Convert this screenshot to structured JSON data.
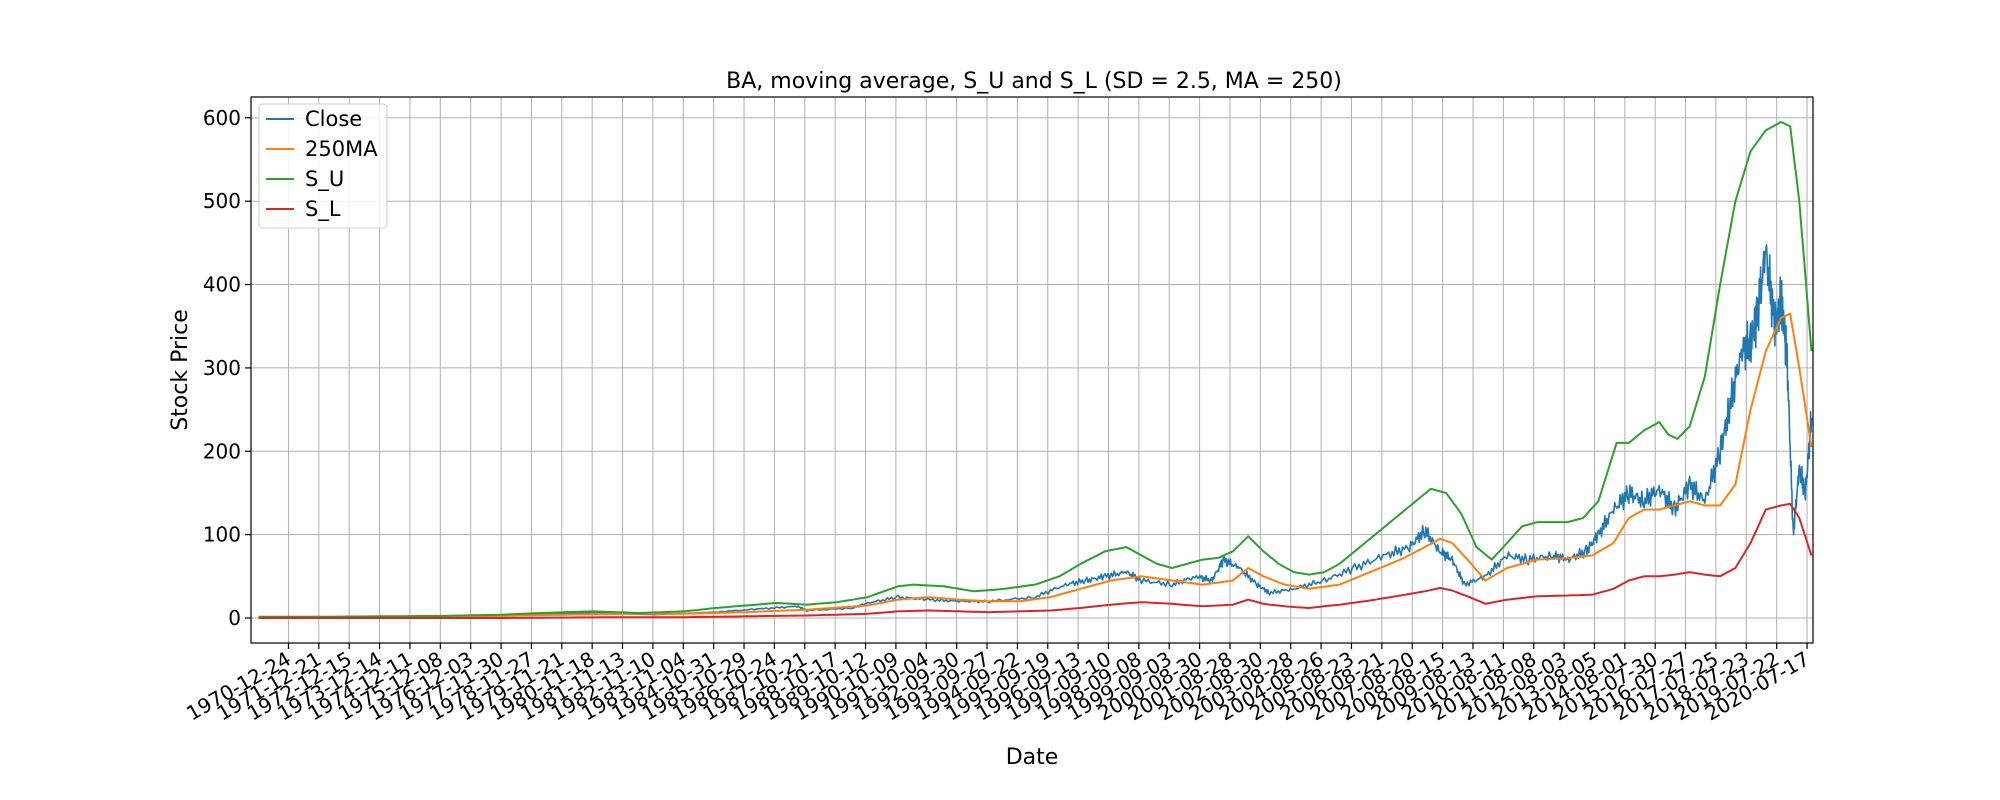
{
  "chart_data": {
    "type": "line",
    "title": "BA, moving average, S_U and S_L (SD = 2.5, MA = 250)",
    "xlabel": "Date",
    "ylabel": "Stock Price",
    "ylim": [
      -30,
      625
    ],
    "xlim": [
      1969.75,
      2021.05
    ],
    "yticks": [
      0,
      100,
      200,
      300,
      400,
      500,
      600
    ],
    "grid": true,
    "legend_position": "top-left",
    "colors": {
      "Close": "#1f77b4",
      "250MA": "#ff7f0e",
      "S_U": "#2ca02c",
      "S_L": "#d62728"
    },
    "xtick_labels": [
      "1970-12-24",
      "1971-12-21",
      "1972-12-15",
      "1973-12-14",
      "1974-12-11",
      "1975-12-08",
      "1976-12-03",
      "1977-11-30",
      "1978-11-27",
      "1979-11-21",
      "1980-11-18",
      "1981-11-13",
      "1982-11-10",
      "1983-11-04",
      "1984-10-31",
      "1985-10-29",
      "1986-10-24",
      "1987-10-21",
      "1988-10-17",
      "1989-10-12",
      "1990-10-09",
      "1991-10-04",
      "1992-09-30",
      "1993-09-27",
      "1994-09-22",
      "1995-09-19",
      "1996-09-13",
      "1997-09-10",
      "1998-09-08",
      "1999-09-03",
      "2000-08-30",
      "2001-08-28",
      "2002-08-30",
      "2003-08-28",
      "2004-08-26",
      "2005-08-23",
      "2006-08-21",
      "2007-08-20",
      "2008-08-15",
      "2009-08-13",
      "2010-08-11",
      "2011-08-08",
      "2012-08-03",
      "2013-08-05",
      "2014-08-01",
      "2015-07-30",
      "2016-07-27",
      "2017-07-25",
      "2018-07-23",
      "2019-07-22",
      "2020-07-17"
    ],
    "series": [
      {
        "name": "Close",
        "x": [
          1970.0,
          1972.0,
          1974.0,
          1976.0,
          1978.0,
          1979.5,
          1981.0,
          1983.0,
          1985.0,
          1986.5,
          1987.7,
          1988.0,
          1989.5,
          1990.0,
          1991.0,
          1992.0,
          1993.0,
          1994.0,
          1995.5,
          1996.5,
          1997.2,
          1997.8,
          1998.5,
          1999.0,
          2000.0,
          2000.8,
          2001.3,
          2001.7,
          2002.2,
          2002.8,
          2003.2,
          2004.0,
          2005.0,
          2006.0,
          2007.0,
          2007.8,
          2008.3,
          2008.8,
          2009.2,
          2009.6,
          2010.3,
          2011.0,
          2011.7,
          2012.5,
          2013.0,
          2013.6,
          2014.0,
          2014.5,
          2015.0,
          2015.5,
          2016.0,
          2016.5,
          2017.0,
          2017.5,
          2018.0,
          2018.3,
          2018.7,
          2019.0,
          2019.2,
          2019.5,
          2019.8,
          2020.0,
          2020.1,
          2020.2,
          2020.4,
          2020.6,
          2020.8,
          2021.0
        ],
        "y": [
          1,
          1.5,
          1,
          2,
          3,
          5,
          6,
          4,
          7,
          11,
          14,
          9,
          12,
          18,
          25,
          22,
          20,
          20,
          25,
          40,
          45,
          50,
          55,
          45,
          40,
          50,
          45,
          70,
          60,
          40,
          30,
          35,
          45,
          60,
          75,
          85,
          105,
          80,
          70,
          40,
          50,
          75,
          70,
          75,
          70,
          80,
          100,
          130,
          150,
          140,
          155,
          130,
          160,
          140,
          200,
          250,
          320,
          330,
          360,
          440,
          350,
          380,
          350,
          310,
          100,
          180,
          150,
          240
        ]
      },
      {
        "name": "250MA",
        "x": [
          1970.0,
          1972.0,
          1974.0,
          1976.0,
          1978.0,
          1980.0,
          1982.0,
          1984.0,
          1986.0,
          1988.0,
          1990.0,
          1991.0,
          1992.0,
          1993.0,
          1994.0,
          1995.0,
          1996.0,
          1997.0,
          1998.0,
          1999.0,
          2000.0,
          2001.0,
          2002.0,
          2002.5,
          2003.0,
          2003.7,
          2004.5,
          2005.5,
          2006.5,
          2007.5,
          2008.3,
          2008.8,
          2009.2,
          2009.7,
          2010.3,
          2011.0,
          2012.0,
          2013.0,
          2013.8,
          2014.5,
          2015.0,
          2015.5,
          2016.0,
          2016.5,
          2017.0,
          2017.5,
          2018.0,
          2018.5,
          2019.0,
          2019.5,
          2020.0,
          2020.3,
          2020.6,
          2021.0
        ],
        "y": [
          1,
          1,
          1,
          1.5,
          2.5,
          4,
          5,
          5,
          7,
          10,
          15,
          22,
          25,
          22,
          20,
          20,
          25,
          35,
          45,
          50,
          45,
          40,
          45,
          60,
          50,
          40,
          35,
          40,
          55,
          70,
          85,
          95,
          90,
          70,
          45,
          60,
          70,
          72,
          75,
          90,
          120,
          130,
          130,
          135,
          140,
          135,
          135,
          160,
          250,
          320,
          360,
          365,
          300,
          205
        ]
      },
      {
        "name": "S_U",
        "x": [
          1970.0,
          1972.0,
          1974.0,
          1976.0,
          1978.0,
          1980.0,
          1981.0,
          1982.5,
          1984.0,
          1985.0,
          1986.0,
          1987.0,
          1988.0,
          1989.0,
          1990.0,
          1991.0,
          1991.5,
          1992.5,
          1993.5,
          1994.5,
          1995.5,
          1996.3,
          1997.0,
          1997.8,
          1998.5,
          1999.0,
          1999.5,
          2000.0,
          2000.5,
          2001.0,
          2001.5,
          2002.0,
          2002.5,
          2003.0,
          2003.5,
          2004.0,
          2004.5,
          2005.0,
          2005.5,
          2006.0,
          2006.5,
          2007.0,
          2007.5,
          2008.0,
          2008.5,
          2009.0,
          2009.5,
          2010.0,
          2010.5,
          2011.0,
          2011.5,
          2012.0,
          2012.5,
          2013.0,
          2013.5,
          2014.0,
          2014.3,
          2014.6,
          2015.0,
          2015.5,
          2016.0,
          2016.3,
          2016.6,
          2017.0,
          2017.5,
          2018.0,
          2018.5,
          2019.0,
          2019.5,
          2020.0,
          2020.3,
          2020.6,
          2021.0
        ],
        "y": [
          1.5,
          1.5,
          2,
          2.5,
          4,
          7,
          8,
          6,
          8,
          12,
          15,
          18,
          16,
          19,
          25,
          38,
          40,
          38,
          32,
          35,
          40,
          50,
          65,
          80,
          85,
          75,
          65,
          60,
          65,
          70,
          72,
          80,
          98,
          80,
          65,
          55,
          52,
          55,
          65,
          80,
          95,
          110,
          125,
          140,
          155,
          150,
          125,
          85,
          70,
          90,
          110,
          115,
          115,
          115,
          120,
          140,
          175,
          210,
          210,
          225,
          235,
          220,
          215,
          230,
          290,
          400,
          500,
          560,
          585,
          595,
          590,
          500,
          320
        ]
      },
      {
        "name": "S_L",
        "x": [
          1970.0,
          1972.0,
          1974.0,
          1976.0,
          1978.0,
          1980.0,
          1982.0,
          1984.0,
          1986.0,
          1988.0,
          1990.0,
          1991.0,
          1992.0,
          1993.0,
          1994.0,
          1995.0,
          1996.0,
          1997.0,
          1998.0,
          1999.0,
          2000.0,
          2001.0,
          2002.0,
          2002.5,
          2003.0,
          2003.7,
          2004.5,
          2005.5,
          2006.5,
          2007.5,
          2008.3,
          2008.8,
          2009.2,
          2009.7,
          2010.3,
          2011.0,
          2012.0,
          2013.0,
          2013.8,
          2014.5,
          2015.0,
          2015.5,
          2016.0,
          2016.5,
          2017.0,
          2017.5,
          2018.0,
          2018.5,
          2019.0,
          2019.5,
          2020.0,
          2020.3,
          2020.6,
          2021.0
        ],
        "y": [
          0,
          0,
          0,
          0,
          0,
          0.5,
          1,
          1,
          2,
          3,
          5,
          8,
          9,
          8,
          7,
          8,
          9,
          12,
          16,
          19,
          17,
          14,
          16,
          22,
          17,
          14,
          12,
          16,
          21,
          27,
          32,
          36,
          33,
          26,
          17,
          22,
          26,
          27,
          28,
          35,
          45,
          50,
          50,
          52,
          55,
          52,
          50,
          60,
          90,
          130,
          135,
          137,
          120,
          75
        ]
      }
    ]
  }
}
